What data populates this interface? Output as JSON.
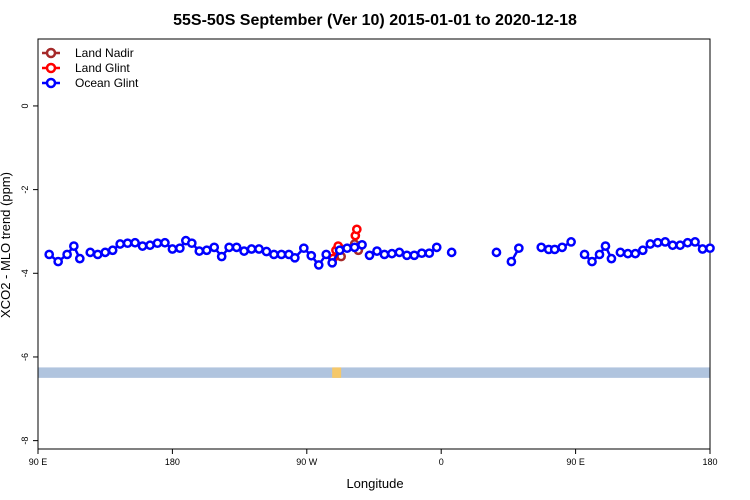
{
  "chart_data": {
    "type": "line",
    "title": "55S-50S September (Ver 10)   2015-01-01 to 2020-12-18",
    "xlabel": "Longitude",
    "ylabel": "XCO2 - MLO trend (ppm)",
    "x_ticks": [
      {
        "value": 0,
        "label": "90 E"
      },
      {
        "value": 90,
        "label": "180"
      },
      {
        "value": 180,
        "label": "90 W"
      },
      {
        "value": 270,
        "label": "0"
      },
      {
        "value": 360,
        "label": "90 E"
      },
      {
        "value": 450,
        "label": "180"
      }
    ],
    "y_ticks": [
      {
        "value": 0,
        "label": "0"
      },
      {
        "value": -2,
        "label": "-2"
      },
      {
        "value": -4,
        "label": "-4"
      },
      {
        "value": -6,
        "label": "-6"
      },
      {
        "value": -8,
        "label": "-8"
      }
    ],
    "xlim": [
      0,
      450
    ],
    "ylim": [
      -8.2,
      1.6
    ],
    "grid": false,
    "legend_position": "top-left",
    "series": [
      {
        "name": "Land Nadir",
        "color": "#a52a2a",
        "segments": [
          [
            [
              212,
              -3.3
            ],
            [
              214.5,
              -3.45
            ]
          ],
          [
            [
              202,
              -3.4
            ],
            [
              203,
              -3.6
            ]
          ]
        ]
      },
      {
        "name": "Land Glint",
        "color": "#ff0000",
        "segments": [
          [
            [
              197.5,
              -3.65
            ],
            [
              199.5,
              -3.45
            ],
            [
              201,
              -3.35
            ]
          ],
          [
            [
              212.5,
              -3.1
            ],
            [
              213.5,
              -2.95
            ]
          ]
        ]
      },
      {
        "name": "Ocean Glint",
        "color": "#0000ff",
        "segments": [
          [
            [
              7.5,
              -3.55
            ],
            [
              13.5,
              -3.72
            ],
            [
              19.5,
              -3.55
            ],
            [
              24,
              -3.35
            ],
            [
              28,
              -3.65
            ]
          ],
          [
            [
              35,
              -3.5
            ],
            [
              40,
              -3.55
            ],
            [
              45,
              -3.5
            ],
            [
              50,
              -3.45
            ],
            [
              55,
              -3.3
            ],
            [
              60,
              -3.28
            ],
            [
              65,
              -3.27
            ],
            [
              70,
              -3.35
            ],
            [
              75,
              -3.33
            ],
            [
              80,
              -3.28
            ],
            [
              85,
              -3.27
            ],
            [
              90,
              -3.42
            ],
            [
              95,
              -3.4
            ],
            [
              99,
              -3.22
            ],
            [
              103,
              -3.28
            ],
            [
              108,
              -3.47
            ],
            [
              113,
              -3.45
            ],
            [
              118,
              -3.38
            ],
            [
              123,
              -3.6
            ],
            [
              128,
              -3.38
            ],
            [
              133,
              -3.38
            ],
            [
              138,
              -3.47
            ],
            [
              143,
              -3.42
            ],
            [
              148,
              -3.42
            ],
            [
              153,
              -3.48
            ],
            [
              158,
              -3.55
            ],
            [
              163,
              -3.55
            ],
            [
              168,
              -3.55
            ],
            [
              172,
              -3.63
            ],
            [
              178,
              -3.4
            ],
            [
              183,
              -3.58
            ],
            [
              188,
              -3.8
            ],
            [
              193,
              -3.55
            ],
            [
              197,
              -3.75
            ],
            [
              202,
              -3.45
            ],
            [
              207,
              -3.4
            ],
            [
              212,
              -3.38
            ],
            [
              217,
              -3.32
            ]
          ],
          [
            [
              222,
              -3.57
            ],
            [
              227,
              -3.47
            ],
            [
              232,
              -3.55
            ],
            [
              237,
              -3.53
            ],
            [
              242,
              -3.5
            ],
            [
              247,
              -3.57
            ],
            [
              252,
              -3.57
            ],
            [
              257,
              -3.52
            ],
            [
              262,
              -3.52
            ],
            [
              267,
              -3.38
            ]
          ],
          [
            [
              277,
              -3.5
            ]
          ],
          [
            [
              307,
              -3.5
            ]
          ],
          [
            [
              317,
              -3.72
            ],
            [
              322,
              -3.4
            ]
          ],
          [
            [
              337,
              -3.38
            ],
            [
              342,
              -3.43
            ],
            [
              346,
              -3.43
            ],
            [
              351,
              -3.38
            ],
            [
              357,
              -3.25
            ]
          ],
          [
            [
              366,
              -3.55
            ],
            [
              371,
              -3.72
            ],
            [
              376,
              -3.55
            ],
            [
              380,
              -3.35
            ],
            [
              384,
              -3.65
            ]
          ],
          [
            [
              390,
              -3.5
            ],
            [
              395,
              -3.53
            ],
            [
              400,
              -3.53
            ],
            [
              405,
              -3.45
            ],
            [
              410,
              -3.3
            ],
            [
              415,
              -3.27
            ],
            [
              420,
              -3.25
            ],
            [
              425,
              -3.33
            ],
            [
              430,
              -3.33
            ],
            [
              435,
              -3.27
            ],
            [
              440,
              -3.25
            ],
            [
              445,
              -3.42
            ],
            [
              450,
              -3.4
            ]
          ]
        ]
      }
    ],
    "bottom_band": {
      "color": "#b0c4de",
      "y_range": [
        -6.5,
        -6.25
      ],
      "x_range": [
        0,
        450
      ],
      "land_fraction": [
        {
          "x_range": [
            197,
            203
          ],
          "color": "#f5c86a"
        }
      ]
    }
  }
}
